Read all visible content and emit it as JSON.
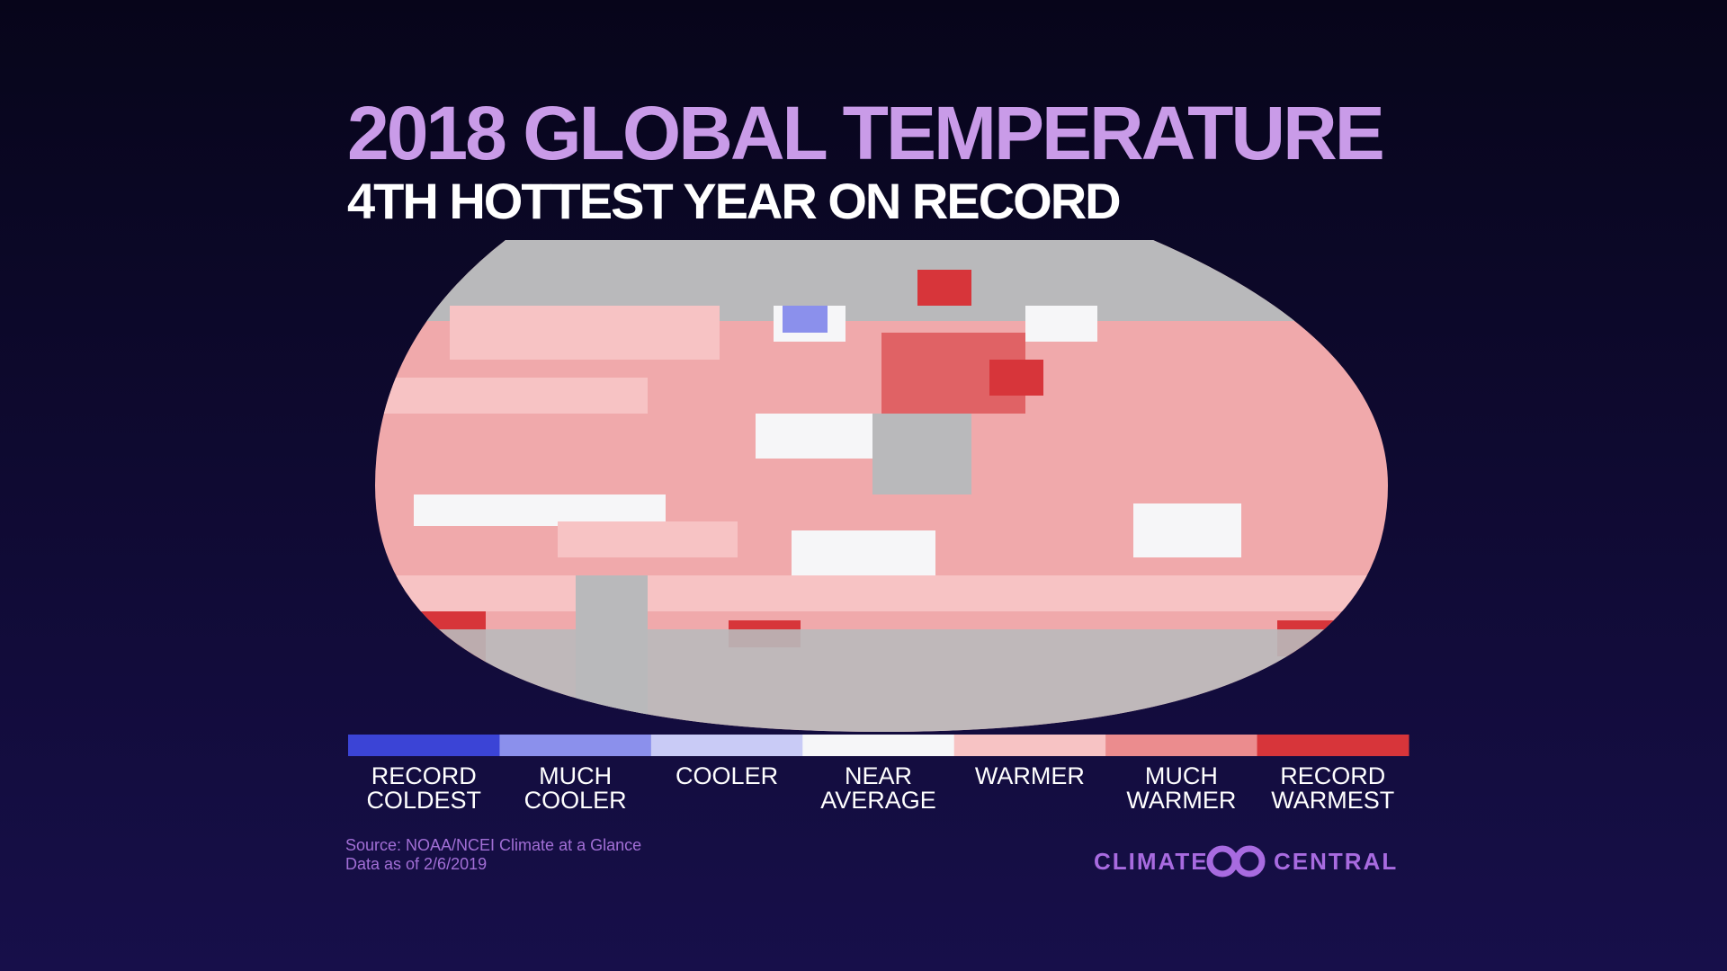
{
  "header": {
    "title": "2018 GLOBAL TEMPERATURE",
    "subtitle": "4TH HOTTEST YEAR ON RECORD"
  },
  "legend": {
    "items": [
      {
        "label": [
          "RECORD",
          "COLDEST"
        ],
        "color": "#3b44d6"
      },
      {
        "label": [
          "MUCH",
          "COOLER"
        ],
        "color": "#8b90ec"
      },
      {
        "label": [
          "COOLER"
        ],
        "color": "#c9cbf6"
      },
      {
        "label": [
          "NEAR",
          "AVERAGE"
        ],
        "color": "#f6f6f8"
      },
      {
        "label": [
          "WARMER"
        ],
        "color": "#f7c3c4"
      },
      {
        "label": [
          "MUCH",
          "WARMER"
        ],
        "color": "#eb8c8e"
      },
      {
        "label": [
          "RECORD",
          "WARMEST"
        ],
        "color": "#d7353a"
      }
    ]
  },
  "footer": {
    "source": [
      "Source: NOAA/NCEI Climate at a Glance",
      "Data as of 2/6/2019"
    ],
    "logo": [
      "CLIMATE",
      "CENTRAL"
    ]
  }
}
